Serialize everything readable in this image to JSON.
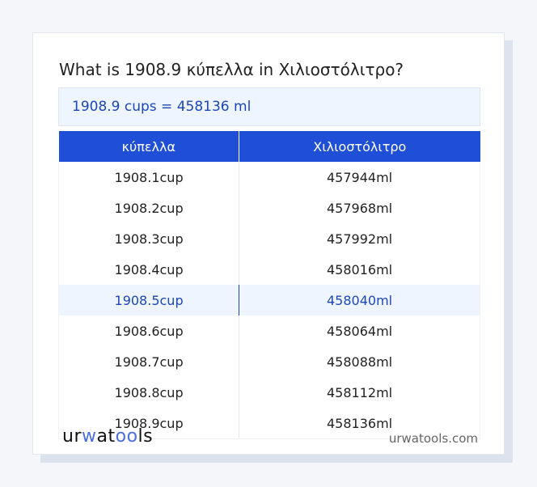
{
  "title": "What is 1908.9 κύπελλα in Χιλιοστόλιτρο?",
  "result": "1908.9 cups = 458136 ml",
  "table": {
    "headers": [
      "κύπελλα",
      "Χιλιοστόλιτρο"
    ],
    "rows": [
      [
        "1908.1cup",
        "457944ml"
      ],
      [
        "1908.2cup",
        "457968ml"
      ],
      [
        "1908.3cup",
        "457992ml"
      ],
      [
        "1908.4cup",
        "458016ml"
      ],
      [
        "1908.5cup",
        "458040ml"
      ],
      [
        "1908.6cup",
        "458064ml"
      ],
      [
        "1908.7cup",
        "458088ml"
      ],
      [
        "1908.8cup",
        "458112ml"
      ],
      [
        "1908.9cup",
        "458136ml"
      ]
    ],
    "highlighted_row": 4
  },
  "footer": {
    "logo": "urwatools",
    "site": "urwatools.com"
  },
  "colors": {
    "accent": "#1f4fd6",
    "highlight_bg": "#eef5fe"
  }
}
